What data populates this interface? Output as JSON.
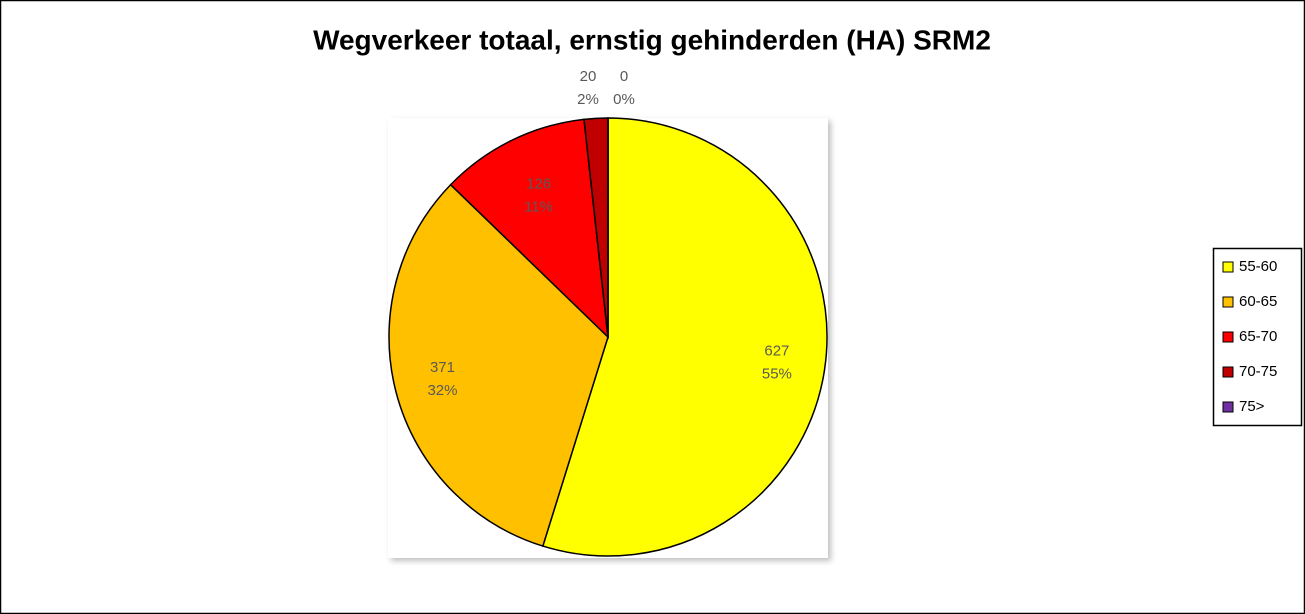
{
  "chart_data": {
    "type": "pie",
    "title": "Wegverkeer totaal, ernstig gehinderden (HA) SRM2",
    "categories": [
      "55-60",
      "60-65",
      "65-70",
      "70-75",
      "75>"
    ],
    "values": [
      627,
      371,
      126,
      20,
      0
    ],
    "percent_labels": [
      "55%",
      "32%",
      "11%",
      "2%",
      "0%"
    ],
    "colors": [
      "#ffff00",
      "#ffc000",
      "#ff0000",
      "#c00000",
      "#7030a0"
    ],
    "legend": "right"
  }
}
